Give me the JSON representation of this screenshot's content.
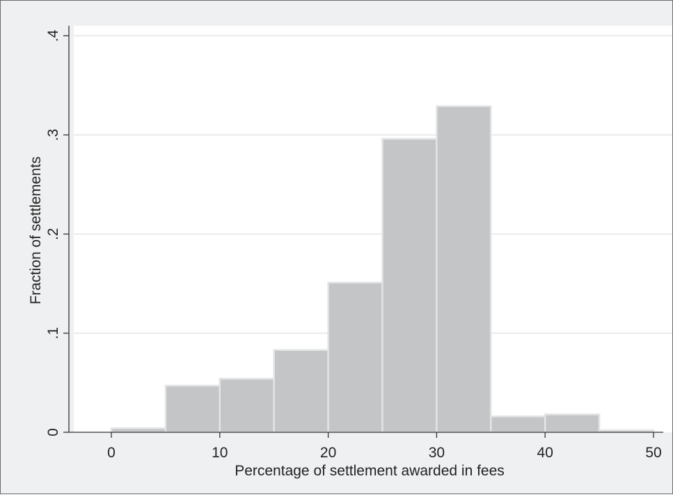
{
  "chart_data": {
    "type": "bar",
    "title": "",
    "xlabel": "Percentage of settlement awarded in fees",
    "ylabel": "Fraction of settlements",
    "xlim": [
      -5,
      50
    ],
    "ylim": [
      0,
      0.41
    ],
    "x_ticks": [
      {
        "value": 0,
        "label": "0"
      },
      {
        "value": 10,
        "label": "10"
      },
      {
        "value": 20,
        "label": "20"
      },
      {
        "value": 30,
        "label": "30"
      },
      {
        "value": 40,
        "label": "40"
      },
      {
        "value": 50,
        "label": "50"
      }
    ],
    "y_ticks": [
      {
        "value": 0,
        "label": "0"
      },
      {
        "value": 0.1,
        "label": ".1"
      },
      {
        "value": 0.2,
        "label": ".2"
      },
      {
        "value": 0.3,
        "label": ".3"
      },
      {
        "value": 0.4,
        "label": ".4"
      }
    ],
    "bins": [
      {
        "start": 0,
        "end": 5,
        "value": 0.004
      },
      {
        "start": 5,
        "end": 10,
        "value": 0.047
      },
      {
        "start": 10,
        "end": 15,
        "value": 0.054
      },
      {
        "start": 15,
        "end": 20,
        "value": 0.083
      },
      {
        "start": 20,
        "end": 25,
        "value": 0.151
      },
      {
        "start": 25,
        "end": 30,
        "value": 0.296
      },
      {
        "start": 30,
        "end": 35,
        "value": 0.329
      },
      {
        "start": 35,
        "end": 40,
        "value": 0.016
      },
      {
        "start": 40,
        "end": 45,
        "value": 0.018
      },
      {
        "start": 45,
        "end": 50,
        "value": 0.002
      }
    ],
    "grid": true,
    "colors": {
      "bar_fill": "#c4c5c7",
      "bar_edge": "#e3e4e5",
      "plot_background": "#ffffff",
      "outer_background": "#eef0f1",
      "gridline": "#e9eaeb",
      "axis": "#333333"
    }
  }
}
